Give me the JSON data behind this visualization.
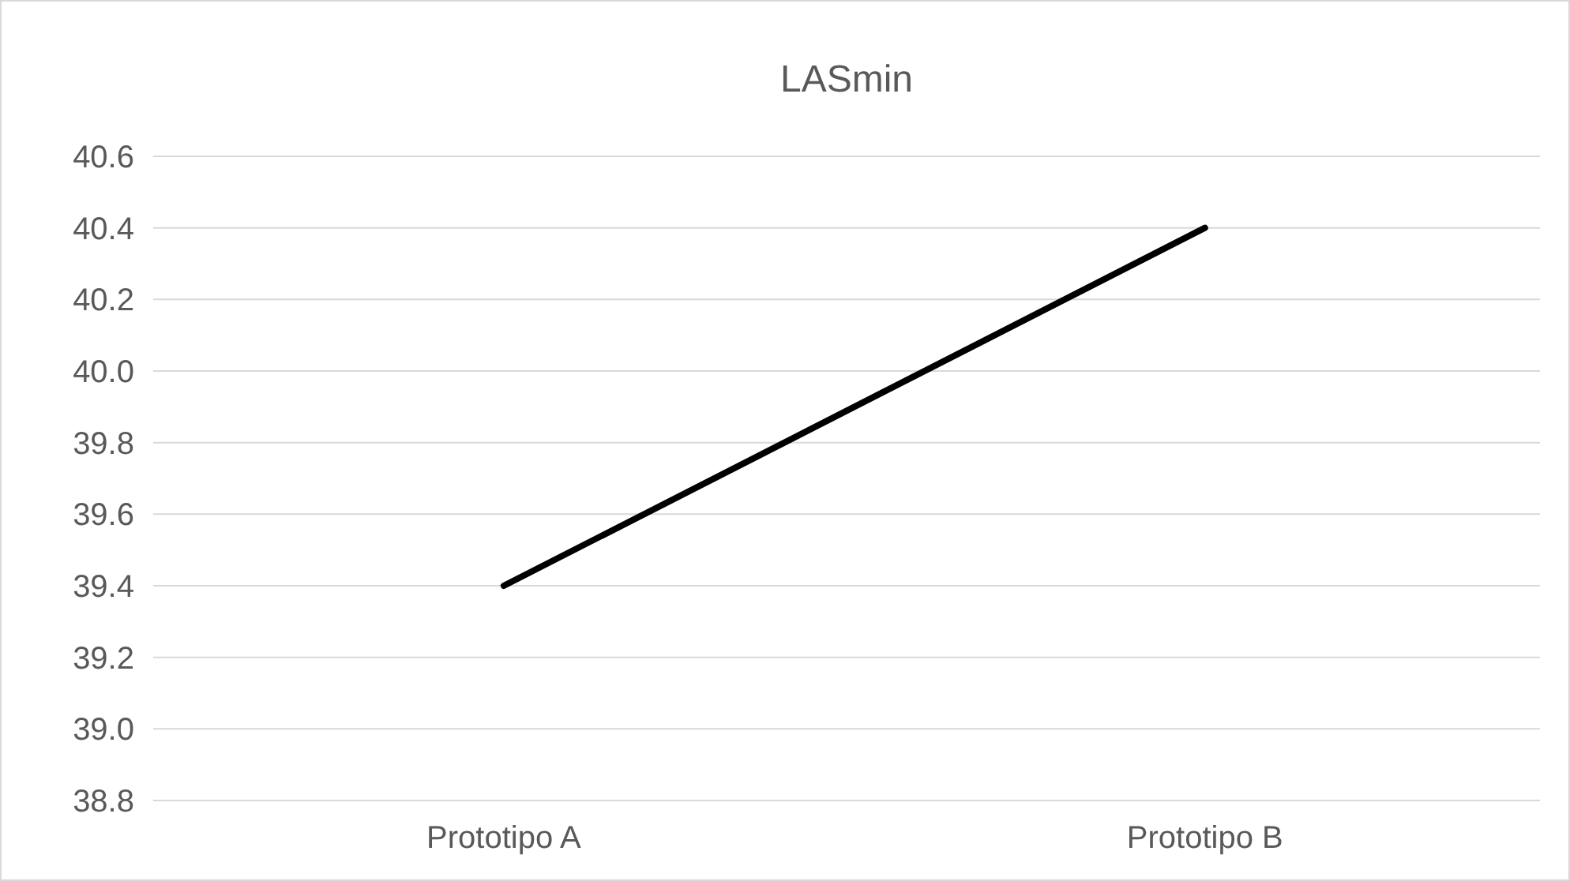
{
  "chart_data": {
    "type": "line",
    "title": "LASmin",
    "categories": [
      "Prototipo A",
      "Prototipo B"
    ],
    "series": [
      {
        "color": "#000000",
        "values": [
          39.4,
          40.4
        ]
      }
    ],
    "ylim": [
      38.8,
      40.6
    ],
    "yticks": [
      38.8,
      {
        "value": 39,
        "label": "39.0"
      },
      39.2,
      39.4,
      39.6,
      39.8,
      {
        "value": 40,
        "label": "40.0"
      },
      40.2,
      40.4,
      40.6
    ],
    "grid": "y",
    "marker": "none",
    "line_style": "solid"
  }
}
